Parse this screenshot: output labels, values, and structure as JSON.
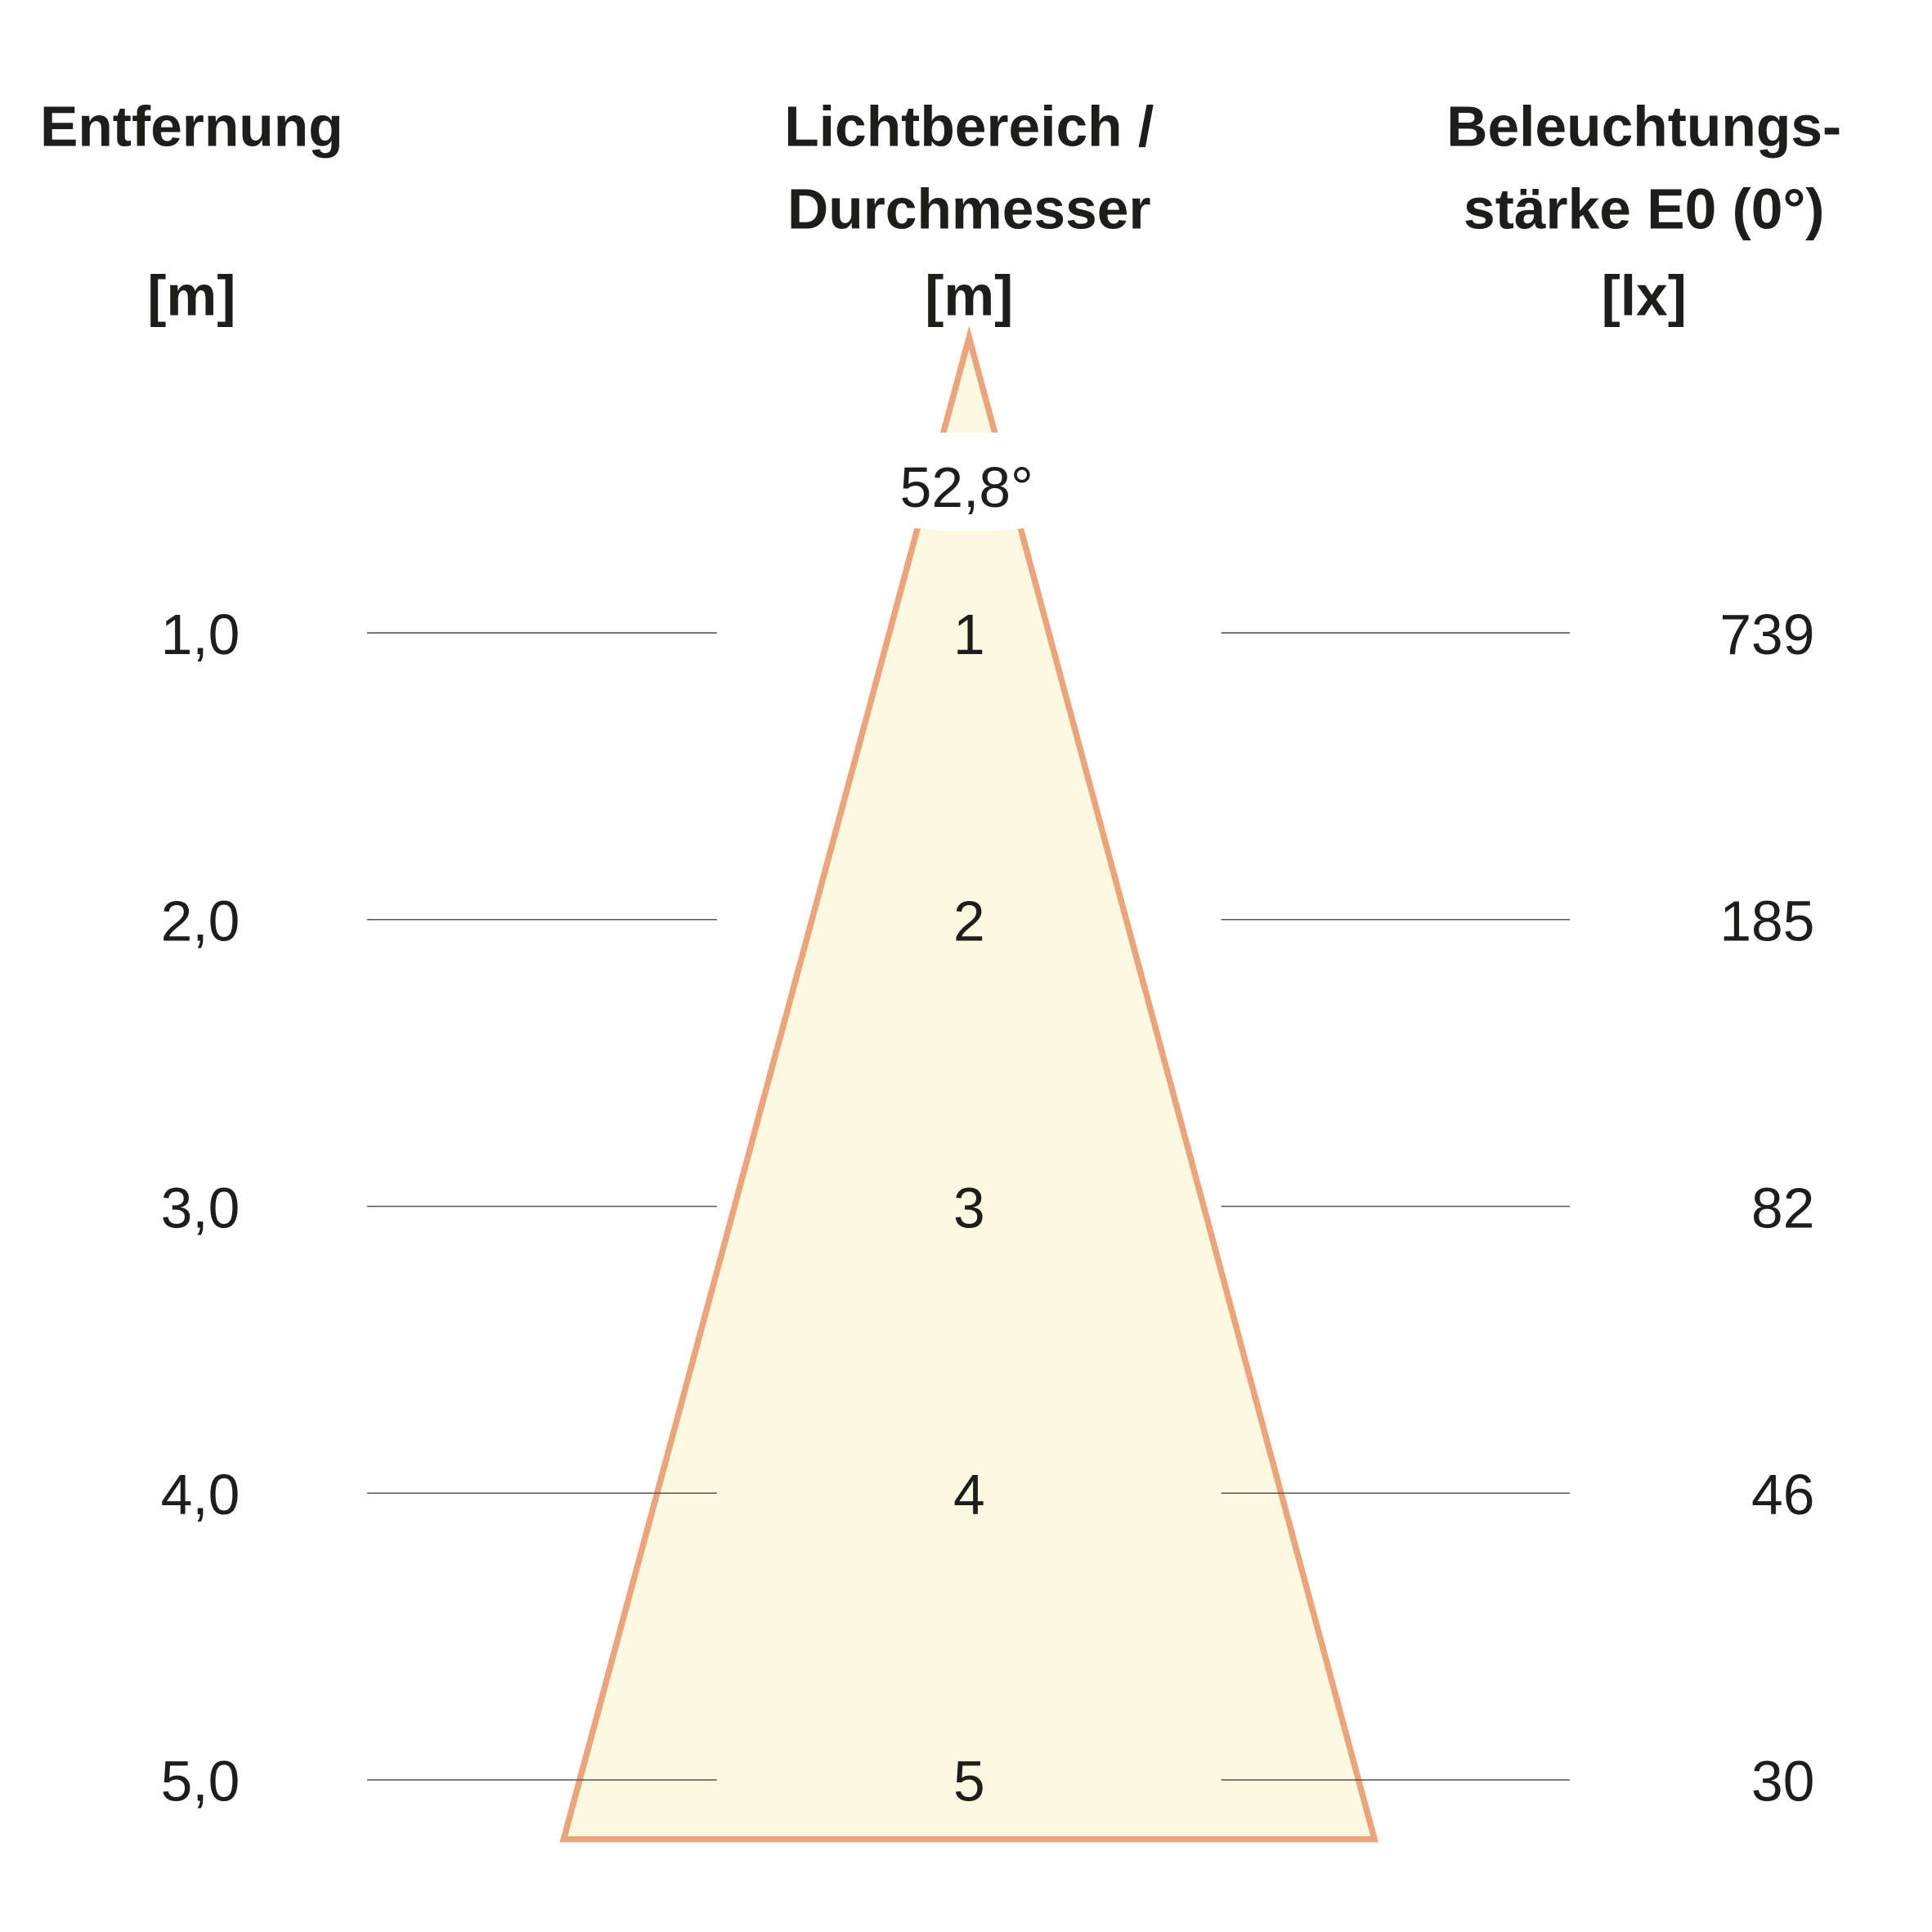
{
  "chart_data": {
    "type": "table",
    "headers": {
      "distance": [
        "Entfernung",
        "[m]"
      ],
      "diameter": [
        "Lichtbereich /",
        "Durchmesser",
        "[m]"
      ],
      "illuminance": [
        "Beleuchtungs-",
        "stärke E0 (0°)",
        "[lx]"
      ]
    },
    "beam_angle": "52,8°",
    "rows": [
      {
        "distance": "1,0",
        "diameter": "1",
        "illuminance": "739"
      },
      {
        "distance": "2,0",
        "diameter": "2",
        "illuminance": "185"
      },
      {
        "distance": "3,0",
        "diameter": "3",
        "illuminance": "82"
      },
      {
        "distance": "4,0",
        "diameter": "4",
        "illuminance": "46"
      },
      {
        "distance": "5,0",
        "diameter": "5",
        "illuminance": "30"
      }
    ],
    "colors": {
      "cone_fill": "#fdf9e1",
      "cone_stroke": "#eba57c",
      "text": "#1d1d1b",
      "rule": "#555555"
    }
  }
}
